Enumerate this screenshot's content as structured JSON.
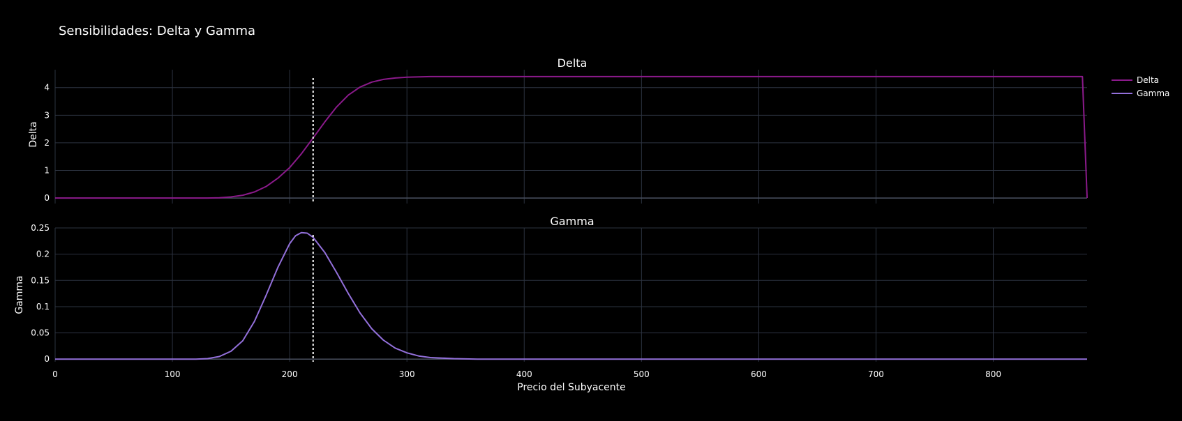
{
  "title": "Sensibilidades: Delta y Gamma",
  "colors": {
    "background": "#000000",
    "grid": "#2c3340",
    "text": "#ffffff",
    "delta": "#8b1a8b",
    "gamma": "#9370db",
    "marker": "#ffffff"
  },
  "chart_data": [
    {
      "type": "line",
      "subplot_title": "Delta",
      "ylabel": "Delta",
      "xlim": [
        0,
        880
      ],
      "ylim": [
        -0.2,
        4.65
      ],
      "yticks": [
        0,
        1,
        2,
        3,
        4
      ],
      "ytick_labels": [
        "0",
        "1",
        "2",
        "3",
        "4"
      ],
      "grid": true,
      "series": [
        {
          "name": "Delta",
          "color": "#8b1a8b",
          "x": [
            0,
            100,
            130,
            140,
            150,
            160,
            170,
            180,
            190,
            200,
            210,
            220,
            230,
            240,
            250,
            260,
            270,
            280,
            290,
            300,
            320,
            350,
            400,
            500,
            600,
            700,
            800,
            876,
            880
          ],
          "y": [
            0,
            0,
            0,
            0.01,
            0.04,
            0.1,
            0.22,
            0.42,
            0.72,
            1.1,
            1.6,
            2.18,
            2.76,
            3.3,
            3.73,
            4.02,
            4.2,
            4.3,
            4.35,
            4.38,
            4.4,
            4.4,
            4.4,
            4.4,
            4.4,
            4.4,
            4.4,
            4.4,
            0
          ]
        }
      ],
      "vline": {
        "x": 220,
        "style": "dotted"
      }
    },
    {
      "type": "line",
      "subplot_title": "Gamma",
      "ylabel": "Gamma",
      "xlabel": "Precio del Subyacente",
      "xlim": [
        0,
        880
      ],
      "ylim": [
        -0.005,
        0.25
      ],
      "yticks": [
        0,
        0.05,
        0.1,
        0.15,
        0.2,
        0.25
      ],
      "ytick_labels": [
        "0",
        "0.05",
        "0.1",
        "0.15",
        "0.2",
        "0.25"
      ],
      "xticks": [
        0,
        100,
        200,
        300,
        400,
        500,
        600,
        700,
        800
      ],
      "xtick_labels": [
        "0",
        "100",
        "200",
        "300",
        "400",
        "500",
        "600",
        "700",
        "800"
      ],
      "grid": true,
      "series": [
        {
          "name": "Gamma",
          "color": "#9370db",
          "x": [
            0,
            100,
            120,
            130,
            140,
            150,
            160,
            170,
            180,
            190,
            200,
            205,
            210,
            215,
            220,
            230,
            240,
            250,
            260,
            270,
            280,
            290,
            300,
            310,
            320,
            340,
            360,
            400,
            500,
            600,
            700,
            800,
            880
          ],
          "y": [
            0,
            0,
            0,
            0.001,
            0.005,
            0.015,
            0.035,
            0.072,
            0.122,
            0.175,
            0.22,
            0.235,
            0.241,
            0.24,
            0.232,
            0.203,
            0.165,
            0.125,
            0.088,
            0.058,
            0.036,
            0.021,
            0.012,
            0.006,
            0.003,
            0.001,
            0,
            0,
            0,
            0,
            0,
            0,
            0
          ]
        }
      ],
      "vline": {
        "x": 220,
        "style": "dotted"
      }
    }
  ],
  "legend": {
    "position": "top-right",
    "items": [
      {
        "name": "Delta",
        "color": "#8b1a8b"
      },
      {
        "name": "Gamma",
        "color": "#9370db"
      }
    ]
  }
}
